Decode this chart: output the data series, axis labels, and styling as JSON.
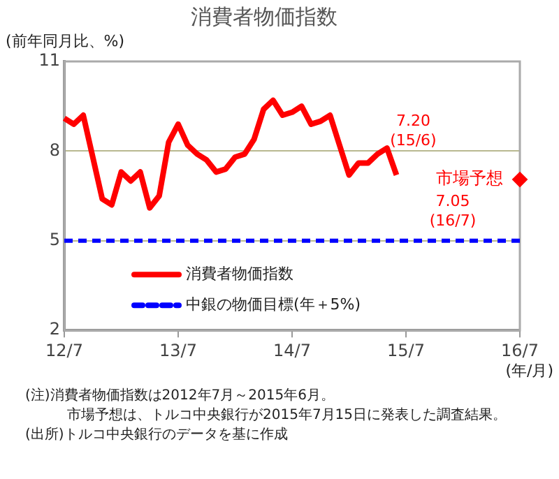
{
  "chart_data": {
    "type": "line",
    "title": "消費者物価指数",
    "ylabel": "(前年同月比、%)",
    "xlabel": "(年/月)",
    "x": [
      "2012-07",
      "2012-08",
      "2012-09",
      "2012-10",
      "2012-11",
      "2012-12",
      "2013-01",
      "2013-02",
      "2013-03",
      "2013-04",
      "2013-05",
      "2013-06",
      "2013-07",
      "2013-08",
      "2013-09",
      "2013-10",
      "2013-11",
      "2013-12",
      "2014-01",
      "2014-02",
      "2014-03",
      "2014-04",
      "2014-05",
      "2014-06",
      "2014-07",
      "2014-08",
      "2014-09",
      "2014-10",
      "2014-11",
      "2014-12",
      "2015-01",
      "2015-02",
      "2015-03",
      "2015-04",
      "2015-05",
      "2015-06"
    ],
    "series": [
      {
        "name": "消費者物価指数",
        "color": "#ff0000",
        "values": [
          9.1,
          8.9,
          9.2,
          7.8,
          6.4,
          6.2,
          7.3,
          7.0,
          7.3,
          6.1,
          6.5,
          8.3,
          8.9,
          8.2,
          7.9,
          7.7,
          7.3,
          7.4,
          7.8,
          7.9,
          8.4,
          9.4,
          9.7,
          9.2,
          9.3,
          9.5,
          8.9,
          9.0,
          9.2,
          8.2,
          7.2,
          7.6,
          7.6,
          7.9,
          8.1,
          7.2
        ]
      },
      {
        "name": "市場予想",
        "type": "scatter",
        "marker": "diamond",
        "color": "#ff0000",
        "x": [
          "2016-07"
        ],
        "values": [
          7.05
        ]
      }
    ],
    "ref_lines": [
      {
        "axis": "y",
        "value": 5,
        "label": "中銀の物価目標(年＋5%)",
        "color": "#0000ff",
        "line_style": "dashed"
      }
    ],
    "xlim": [
      "2012-07",
      "2016-07"
    ],
    "xticks": [
      {
        "value": "2012-07",
        "label": "12/7"
      },
      {
        "value": "2013-07",
        "label": "13/7"
      },
      {
        "value": "2014-07",
        "label": "14/7"
      },
      {
        "value": "2015-07",
        "label": "15/7"
      },
      {
        "value": "2016-07",
        "label": "16/7"
      }
    ],
    "ylim": [
      2,
      11
    ],
    "yticks": [
      2,
      5,
      8,
      11
    ],
    "grid": "y",
    "legend": "bottom left",
    "annotations": [
      {
        "text": "7.20\n(15/6)",
        "x": "2015-06",
        "y": 7.2
      },
      {
        "text": "7.05\n(16/7)",
        "x": "2016-07",
        "y": 7.05
      },
      "(注)消費者物価指数は2012年7月～2015年6月。",
      "市場予想は、トルコ中央銀行が2015年7月15日に発表した調査結果。",
      "(出所)トルコ中央銀行のデータを基に作成"
    ]
  }
}
